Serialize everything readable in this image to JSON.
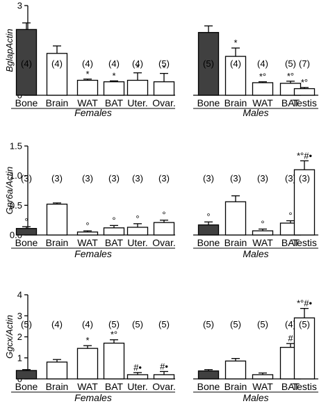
{
  "chart_data": [
    {
      "type": "bar",
      "ylabel": "BglapActin",
      "ylim": [
        0,
        3
      ],
      "yticks": [
        "0",
        "1",
        "2",
        "3"
      ],
      "groups": [
        {
          "name": "Females",
          "categories": [
            "Bone",
            "Brain",
            "WAT",
            "BAT",
            "Uter.",
            "Ovar."
          ],
          "values": [
            2.2,
            1.4,
            0.5,
            0.45,
            0.5,
            0.45
          ],
          "errors": [
            0.22,
            0.25,
            0.04,
            0.03,
            0.25,
            0.28
          ],
          "n": [
            "(4)",
            "(4)",
            "(4)",
            "(4)",
            "(4)",
            "(5)"
          ],
          "annotations": [
            "",
            "",
            "*",
            "*",
            "*",
            "*"
          ],
          "fill": [
            "#404040",
            "#ffffff",
            "#ffffff",
            "#ffffff",
            "#ffffff",
            "#ffffff"
          ]
        },
        {
          "name": "Males",
          "categories": [
            "Bone",
            "Brain",
            "WAT",
            "BAT",
            "Testis"
          ],
          "values": [
            2.1,
            1.3,
            0.42,
            0.4,
            0.22
          ],
          "errors": [
            0.22,
            0.28,
            0.03,
            0.07,
            0.04
          ],
          "n": [
            "(5)",
            "(4)",
            "(4)",
            "(5)",
            "(7)"
          ],
          "annotations": [
            "",
            "*",
            "*°",
            "*°",
            "*°"
          ],
          "fill": [
            "#404040",
            "#ffffff",
            "#ffffff",
            "#ffffff",
            "#ffffff"
          ]
        }
      ]
    },
    {
      "type": "bar",
      "ylabel": "Gpr6a/Actin",
      "ylim": [
        0,
        1.5
      ],
      "yticks": [
        "0.0",
        "0.5",
        "1.0",
        "1.5"
      ],
      "groups": [
        {
          "name": "Females",
          "categories": [
            "Bone",
            "Brain",
            "WAT",
            "BAT",
            "Uter.",
            "Ovar."
          ],
          "values": [
            0.11,
            0.52,
            0.05,
            0.12,
            0.13,
            0.21
          ],
          "errors": [
            0.03,
            0.02,
            0.02,
            0.04,
            0.06,
            0.04
          ],
          "n": [
            "(3)",
            "(3)",
            "(3)",
            "(3)",
            "(3)",
            "(3)"
          ],
          "annotations": [
            "°",
            "",
            "°",
            "°",
            "°",
            "°"
          ],
          "fill": [
            "#404040",
            "#ffffff",
            "#ffffff",
            "#ffffff",
            "#ffffff",
            "#ffffff"
          ]
        },
        {
          "name": "Males",
          "categories": [
            "Bone",
            "Brain",
            "WAT",
            "BAT",
            "Testis"
          ],
          "values": [
            0.17,
            0.56,
            0.07,
            0.2,
            1.1
          ],
          "errors": [
            0.05,
            0.1,
            0.03,
            0.04,
            0.15
          ],
          "n": [
            "(3)",
            "(3)",
            "(3)",
            "(3)",
            "(3)"
          ],
          "annotations": [
            "°",
            "",
            "°",
            "°",
            "*°#•"
          ],
          "fill": [
            "#404040",
            "#ffffff",
            "#ffffff",
            "#ffffff",
            "#ffffff"
          ]
        }
      ]
    },
    {
      "type": "bar",
      "ylabel": "Ggcx/Actin",
      "ylim": [
        0,
        4
      ],
      "yticks": [
        "0",
        "1",
        "2",
        "3",
        "4"
      ],
      "groups": [
        {
          "name": "Females",
          "categories": [
            "Bone",
            "Brain",
            "WAT",
            "BAT",
            "Uter.",
            "Ovar."
          ],
          "values": [
            0.4,
            0.8,
            1.45,
            1.7,
            0.2,
            0.2
          ],
          "errors": [
            0.04,
            0.12,
            0.13,
            0.16,
            0.1,
            0.15
          ],
          "n": [
            "(5)",
            "(4)",
            "(4)",
            "(5)",
            "(5)",
            "(5)"
          ],
          "annotations": [
            "",
            "",
            "*",
            "*°",
            "#•",
            "#•"
          ],
          "fill": [
            "#404040",
            "#ffffff",
            "#ffffff",
            "#ffffff",
            "#ffffff",
            "#ffffff"
          ]
        },
        {
          "name": "Males",
          "categories": [
            "Bone",
            "Brain",
            "WAT",
            "BAT",
            "Testis"
          ],
          "values": [
            0.38,
            0.85,
            0.2,
            1.5,
            2.9
          ],
          "errors": [
            0.06,
            0.12,
            0.08,
            0.18,
            0.45
          ],
          "n": [
            "(5)",
            "(5)",
            "(5)",
            "(4)",
            "(5)"
          ],
          "annotations": [
            "",
            "",
            "",
            "#",
            "*°#•"
          ],
          "fill": [
            "#404040",
            "#ffffff",
            "#ffffff",
            "#ffffff",
            "#ffffff"
          ]
        }
      ]
    }
  ]
}
